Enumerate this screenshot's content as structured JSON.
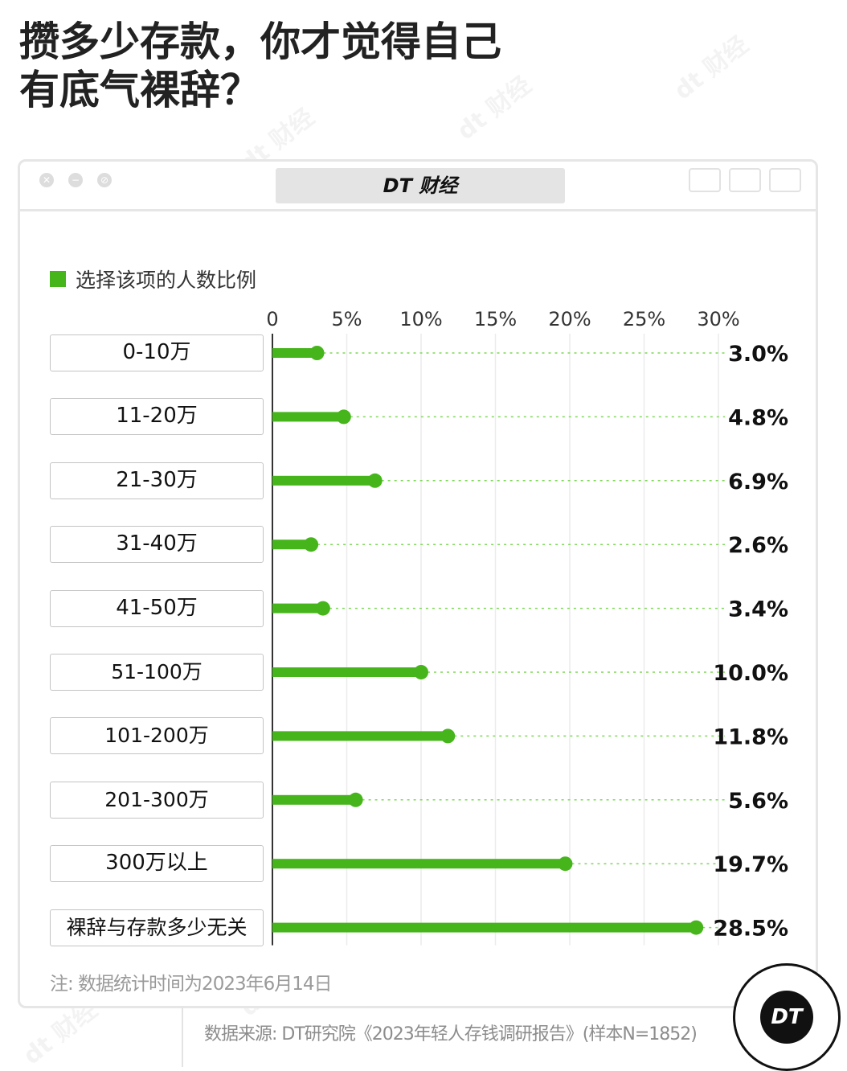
{
  "title": {
    "line1": "攒多少存款，你才觉得自己",
    "line2": "有底气裸辞？"
  },
  "window": {
    "brand": "DT 财经"
  },
  "legend": {
    "label": "选择该项的人数比例",
    "color": "#46b51c"
  },
  "watermark_text": "dt 财经",
  "chart_data": {
    "type": "bar",
    "orientation": "horizontal",
    "style": "lollipop",
    "categories": [
      "0-10万",
      "11-20万",
      "21-30万",
      "31-40万",
      "41-50万",
      "51-100万",
      "101-200万",
      "201-300万",
      "300万以上",
      "裸辞与存款多少无关"
    ],
    "series": [
      {
        "name": "选择该项的人数比例",
        "values": [
          3.0,
          4.8,
          6.9,
          2.6,
          3.4,
          10.0,
          11.8,
          5.6,
          19.7,
          28.5
        ]
      }
    ],
    "value_labels": [
      "3.0%",
      "4.8%",
      "6.9%",
      "2.6%",
      "3.4%",
      "10.0%",
      "11.8%",
      "5.6%",
      "19.7%",
      "28.5%"
    ],
    "xlim": [
      0,
      30
    ],
    "xticks": [
      0,
      5,
      10,
      15,
      20,
      25,
      30
    ],
    "xtick_labels": [
      "0",
      "5%",
      "10%",
      "15%",
      "20%",
      "25%",
      "30%"
    ],
    "grid": true,
    "legend": "top-left",
    "colors": {
      "bar": "#46b51c",
      "guide": "#7ed957",
      "grid": "#ececec",
      "axis": "#333333"
    }
  },
  "note": "注: 数据统计时间为2023年6月14日",
  "source": "数据来源: DT研究院《2023年轻人存钱调研报告》(样本N=1852)",
  "logo": "DT"
}
